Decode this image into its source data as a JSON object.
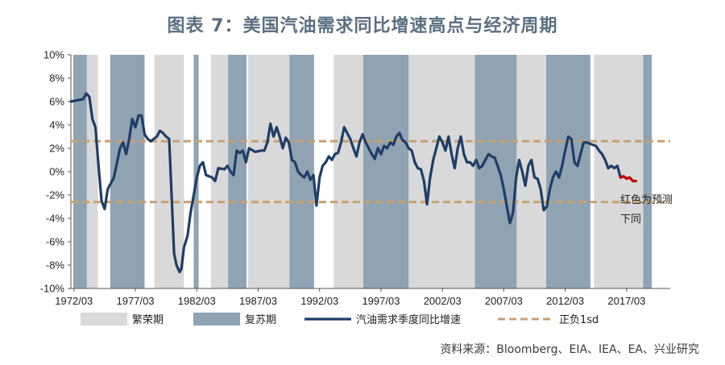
{
  "title": "图表 7：美国汽油需求同比增速高点与经济周期",
  "source": "资料来源：Bloomberg、EIA、IEA、EA、兴业研究",
  "annotation_line1": "红色为预测",
  "annotation_line2": "下同",
  "chart_data": {
    "type": "line",
    "title": "图表 7：美国汽油需求同比增速高点与经济周期",
    "x_tick_labels": [
      "1972/03",
      "1977/03",
      "1982/03",
      "1987/03",
      "1992/03",
      "1997/03",
      "2002/03",
      "2007/03",
      "2012/03",
      "2017/03"
    ],
    "y_tick_labels": [
      "10%",
      "8%",
      "6%",
      "4%",
      "2%",
      "0%",
      "-2%",
      "-4%",
      "-6%",
      "-8%",
      "-10%"
    ],
    "ylim": [
      -10,
      10
    ],
    "xlim": [
      1972.0,
      2020.8
    ],
    "colors": {
      "boom": "#d9d9d9",
      "recovery": "#8fa3b3",
      "series": "#1f3d66",
      "forecast": "#c00000",
      "band": "#c8a070"
    },
    "legend": [
      {
        "label": "繁荣期",
        "kind": "boom"
      },
      {
        "label": "复苏期",
        "kind": "recovery"
      },
      {
        "label": "汽油需求季度同比增速",
        "kind": "series"
      },
      {
        "label": "正负1sd",
        "kind": "band"
      }
    ],
    "std_band": [
      2.6,
      -2.6
    ],
    "boom_periods": [
      [
        1973.3,
        1974.2
      ],
      [
        1978.8,
        1981.2
      ],
      [
        1983.4,
        1984.8
      ],
      [
        1986.4,
        1989.8
      ],
      [
        1993.4,
        1995.8
      ],
      [
        1999.5,
        2004.9
      ],
      [
        2008.3,
        2010.7
      ],
      [
        2014.6,
        2018.6
      ]
    ],
    "recovery_periods": [
      [
        1972.2,
        1973.3
      ],
      [
        1975.2,
        1978.0
      ],
      [
        1982.0,
        1982.4
      ],
      [
        1984.8,
        1986.3
      ],
      [
        1989.8,
        1991.8
      ],
      [
        1995.8,
        1999.5
      ],
      [
        2004.9,
        2008.3
      ],
      [
        2010.7,
        2014.3
      ],
      [
        2018.6,
        2019.3
      ]
    ],
    "series": [
      {
        "name": "汽油需求季度同比增速",
        "points": [
          [
            1972.0,
            6.0
          ],
          [
            1972.5,
            6.1
          ],
          [
            1973.0,
            6.2
          ],
          [
            1973.25,
            6.7
          ],
          [
            1973.5,
            6.4
          ],
          [
            1973.75,
            4.5
          ],
          [
            1974.0,
            3.8
          ],
          [
            1974.25,
            0.5
          ],
          [
            1974.5,
            -2.5
          ],
          [
            1974.75,
            -3.2
          ],
          [
            1975.0,
            -1.5
          ],
          [
            1975.5,
            -0.5
          ],
          [
            1976.0,
            2.0
          ],
          [
            1976.25,
            2.5
          ],
          [
            1976.5,
            1.5
          ],
          [
            1976.75,
            2.8
          ],
          [
            1977.0,
            4.5
          ],
          [
            1977.25,
            3.8
          ],
          [
            1977.5,
            4.8
          ],
          [
            1977.75,
            4.8
          ],
          [
            1978.0,
            3.2
          ],
          [
            1978.25,
            2.8
          ],
          [
            1978.5,
            2.6
          ],
          [
            1978.75,
            2.8
          ],
          [
            1979.0,
            3.0
          ],
          [
            1979.25,
            3.5
          ],
          [
            1979.5,
            3.3
          ],
          [
            1979.75,
            3.0
          ],
          [
            1980.0,
            2.8
          ],
          [
            1980.2,
            -2.0
          ],
          [
            1980.4,
            -7.0
          ],
          [
            1980.6,
            -8.0
          ],
          [
            1980.85,
            -8.6
          ],
          [
            1981.0,
            -8.3
          ],
          [
            1981.2,
            -6.5
          ],
          [
            1981.5,
            -5.5
          ],
          [
            1981.75,
            -3.5
          ],
          [
            1982.0,
            -2.0
          ],
          [
            1982.25,
            -0.5
          ],
          [
            1982.5,
            0.5
          ],
          [
            1982.75,
            0.8
          ],
          [
            1983.0,
            -0.3
          ],
          [
            1983.5,
            -0.5
          ],
          [
            1983.75,
            -0.8
          ],
          [
            1984.0,
            0.3
          ],
          [
            1984.5,
            0.2
          ],
          [
            1984.75,
            0.5
          ],
          [
            1985.0,
            0.0
          ],
          [
            1985.25,
            -0.3
          ],
          [
            1985.5,
            1.8
          ],
          [
            1985.75,
            1.6
          ],
          [
            1986.0,
            1.8
          ],
          [
            1986.25,
            0.8
          ],
          [
            1986.5,
            2.0
          ],
          [
            1987.0,
            1.7
          ],
          [
            1987.5,
            1.8
          ],
          [
            1987.75,
            1.8
          ],
          [
            1988.0,
            2.5
          ],
          [
            1988.25,
            4.1
          ],
          [
            1988.5,
            3.0
          ],
          [
            1988.75,
            3.8
          ],
          [
            1989.0,
            3.0
          ],
          [
            1989.25,
            2.0
          ],
          [
            1989.5,
            2.9
          ],
          [
            1989.75,
            2.5
          ],
          [
            1990.0,
            1.0
          ],
          [
            1990.25,
            0.8
          ],
          [
            1990.5,
            0.0
          ],
          [
            1990.75,
            -0.3
          ],
          [
            1991.0,
            -0.5
          ],
          [
            1991.25,
            0.0
          ],
          [
            1991.5,
            -0.7
          ],
          [
            1991.75,
            -0.3
          ],
          [
            1992.0,
            -2.9
          ],
          [
            1992.25,
            -0.5
          ],
          [
            1992.5,
            0.5
          ],
          [
            1992.75,
            0.8
          ],
          [
            1993.0,
            1.3
          ],
          [
            1993.25,
            1.0
          ],
          [
            1993.5,
            1.5
          ],
          [
            1993.75,
            1.6
          ],
          [
            1994.0,
            2.5
          ],
          [
            1994.25,
            3.8
          ],
          [
            1994.5,
            3.3
          ],
          [
            1994.75,
            2.8
          ],
          [
            1995.0,
            2.0
          ],
          [
            1995.25,
            1.3
          ],
          [
            1995.5,
            2.5
          ],
          [
            1995.75,
            3.2
          ],
          [
            1996.0,
            2.5
          ],
          [
            1996.25,
            2.0
          ],
          [
            1996.5,
            1.5
          ],
          [
            1996.75,
            1.1
          ],
          [
            1997.0,
            2.0
          ],
          [
            1997.25,
            1.5
          ],
          [
            1997.5,
            2.2
          ],
          [
            1997.75,
            2.0
          ],
          [
            1998.0,
            2.5
          ],
          [
            1998.25,
            2.3
          ],
          [
            1998.5,
            3.0
          ],
          [
            1998.75,
            3.3
          ],
          [
            1999.0,
            2.7
          ],
          [
            1999.25,
            2.5
          ],
          [
            1999.5,
            2.0
          ],
          [
            1999.75,
            1.8
          ],
          [
            2000.0,
            0.8
          ],
          [
            2000.25,
            0.3
          ],
          [
            2000.5,
            0.2
          ],
          [
            2000.75,
            -0.8
          ],
          [
            2001.0,
            -2.8
          ],
          [
            2001.25,
            -0.5
          ],
          [
            2001.5,
            1.0
          ],
          [
            2001.75,
            2.0
          ],
          [
            2002.0,
            3.0
          ],
          [
            2002.25,
            2.5
          ],
          [
            2002.5,
            1.8
          ],
          [
            2002.75,
            3.0
          ],
          [
            2003.0,
            1.5
          ],
          [
            2003.25,
            0.3
          ],
          [
            2003.5,
            2.0
          ],
          [
            2003.75,
            3.0
          ],
          [
            2004.0,
            1.5
          ],
          [
            2004.25,
            0.8
          ],
          [
            2004.5,
            0.8
          ],
          [
            2004.75,
            0.5
          ],
          [
            2005.0,
            1.0
          ],
          [
            2005.25,
            0.3
          ],
          [
            2005.5,
            0.5
          ],
          [
            2005.75,
            1.0
          ],
          [
            2006.0,
            1.5
          ],
          [
            2006.25,
            1.3
          ],
          [
            2006.5,
            1.2
          ],
          [
            2006.75,
            0.5
          ],
          [
            2007.0,
            -0.3
          ],
          [
            2007.25,
            -1.5
          ],
          [
            2007.5,
            -3.0
          ],
          [
            2007.75,
            -4.4
          ],
          [
            2008.0,
            -3.5
          ],
          [
            2008.25,
            -0.5
          ],
          [
            2008.5,
            1.0
          ],
          [
            2008.75,
            0.0
          ],
          [
            2009.0,
            -1.2
          ],
          [
            2009.25,
            0.5
          ],
          [
            2009.5,
            1.0
          ],
          [
            2009.75,
            -0.5
          ],
          [
            2010.0,
            -0.6
          ],
          [
            2010.25,
            -1.5
          ],
          [
            2010.5,
            -3.3
          ],
          [
            2010.75,
            -3.0
          ],
          [
            2011.0,
            -1.5
          ],
          [
            2011.25,
            -0.5
          ],
          [
            2011.5,
            0.0
          ],
          [
            2011.75,
            -0.5
          ],
          [
            2012.0,
            0.5
          ],
          [
            2012.25,
            1.8
          ],
          [
            2012.5,
            3.0
          ],
          [
            2012.75,
            2.8
          ],
          [
            2013.0,
            0.8
          ],
          [
            2013.25,
            0.5
          ],
          [
            2013.5,
            1.5
          ],
          [
            2013.75,
            2.5
          ],
          [
            2014.0,
            2.5
          ],
          [
            2014.25,
            2.4
          ],
          [
            2014.5,
            2.3
          ],
          [
            2014.75,
            2.2
          ],
          [
            2015.0,
            1.8
          ],
          [
            2015.25,
            1.5
          ],
          [
            2015.5,
            1.0
          ],
          [
            2015.75,
            0.3
          ],
          [
            2016.0,
            0.5
          ],
          [
            2016.25,
            0.3
          ],
          [
            2016.5,
            0.5
          ],
          [
            2016.75,
            -0.5
          ]
        ]
      },
      {
        "name": "预测",
        "points": [
          [
            2016.75,
            -0.5
          ],
          [
            2017.0,
            -0.4
          ],
          [
            2017.25,
            -0.6
          ],
          [
            2017.5,
            -0.5
          ],
          [
            2017.75,
            -0.8
          ],
          [
            2018.0,
            -0.8
          ]
        ]
      }
    ]
  }
}
